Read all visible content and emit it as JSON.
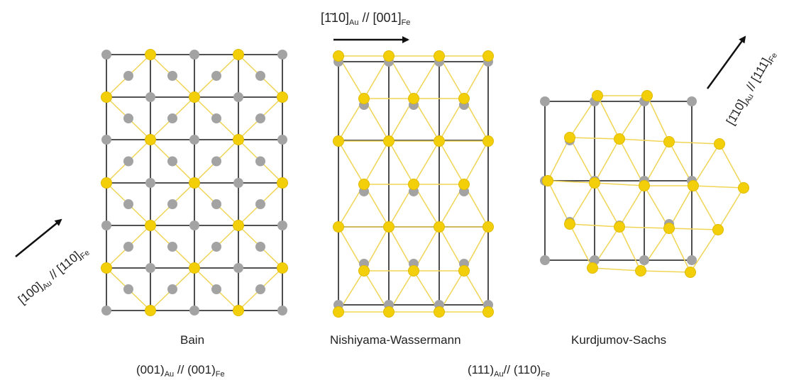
{
  "colors": {
    "au": "#f2cf08",
    "au_stroke": "#e0bb00",
    "bond": "#f0d555",
    "fe": "#a3a3a3",
    "grid": "#3a3a3a"
  },
  "panels": [
    {
      "name": "Bain"
    },
    {
      "name": "Nishiyama-Wassermann"
    },
    {
      "name": "Kurdjumov-Sachs"
    }
  ],
  "orientation": {
    "bain": {
      "a1": "[100]",
      "s1": "Au",
      "sep": " // ",
      "a2": "[110]",
      "s2": "Fe"
    },
    "nw": {
      "a1": "[1̄10]",
      "s1": "Au",
      "sep": " // ",
      "a2": "[001]",
      "s2": "Fe"
    },
    "ks": {
      "a1": "[1̄10]",
      "s1": "Au",
      "sep": " // ",
      "a2": "[111]",
      "s2": "Fe"
    }
  },
  "planes": {
    "bain": {
      "a1": "(001)",
      "s1": "Au",
      "sep": " // ",
      "a2": "(001)",
      "s2": "Fe"
    },
    "nw_ks": {
      "a1": "(111)",
      "s1": "Au",
      "sep": "// ",
      "a2": "(110)",
      "s2": "Fe"
    }
  }
}
